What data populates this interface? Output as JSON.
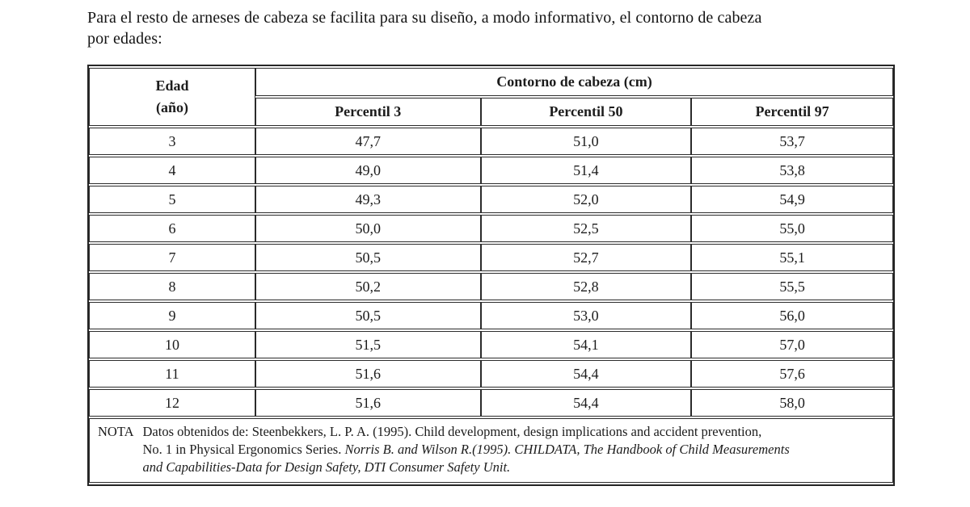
{
  "intro": {
    "line1": "Para el resto de arneses de cabeza se facilita para su diseño, a modo informativo, el contorno de cabeza",
    "line2": "por edades:"
  },
  "table": {
    "header": {
      "age_label_line1": "Edad",
      "age_label_line2": "(año)",
      "group_label": "Contorno de cabeza (cm)",
      "percentile_labels": [
        "Percentil 3",
        "Percentil 50",
        "Percentil 97"
      ]
    },
    "rows": [
      {
        "age": "3",
        "p3": "47,7",
        "p50": "51,0",
        "p97": "53,7"
      },
      {
        "age": "4",
        "p3": "49,0",
        "p50": "51,4",
        "p97": "53,8"
      },
      {
        "age": "5",
        "p3": "49,3",
        "p50": "52,0",
        "p97": "54,9"
      },
      {
        "age": "6",
        "p3": "50,0",
        "p50": "52,5",
        "p97": "55,0"
      },
      {
        "age": "7",
        "p3": "50,5",
        "p50": "52,7",
        "p97": "55,1"
      },
      {
        "age": "8",
        "p3": "50,2",
        "p50": "52,8",
        "p97": "55,5"
      },
      {
        "age": "9",
        "p3": "50,5",
        "p50": "53,0",
        "p97": "56,0"
      },
      {
        "age": "10",
        "p3": "51,5",
        "p50": "54,1",
        "p97": "57,0"
      },
      {
        "age": "11",
        "p3": "51,6",
        "p50": "54,4",
        "p97": "57,6"
      },
      {
        "age": "12",
        "p3": "51,6",
        "p50": "54,4",
        "p97": "58,0"
      }
    ]
  },
  "nota": {
    "label": "NOTA",
    "lines": [
      {
        "roman": "Datos obtenidos de: Steenbekkers, L. P. A. (1995). Child development, design implications and accident prevention,",
        "italic": ""
      },
      {
        "roman": "No. 1 in Physical Ergonomics Series. ",
        "italic": "Norris B. and Wilson R.(1995). CHILDATA, The Handbook of Child Measurements"
      },
      {
        "roman": "",
        "italic": "and Capabilities-Data for Design Safety, DTI Consumer Safety Unit."
      }
    ]
  }
}
